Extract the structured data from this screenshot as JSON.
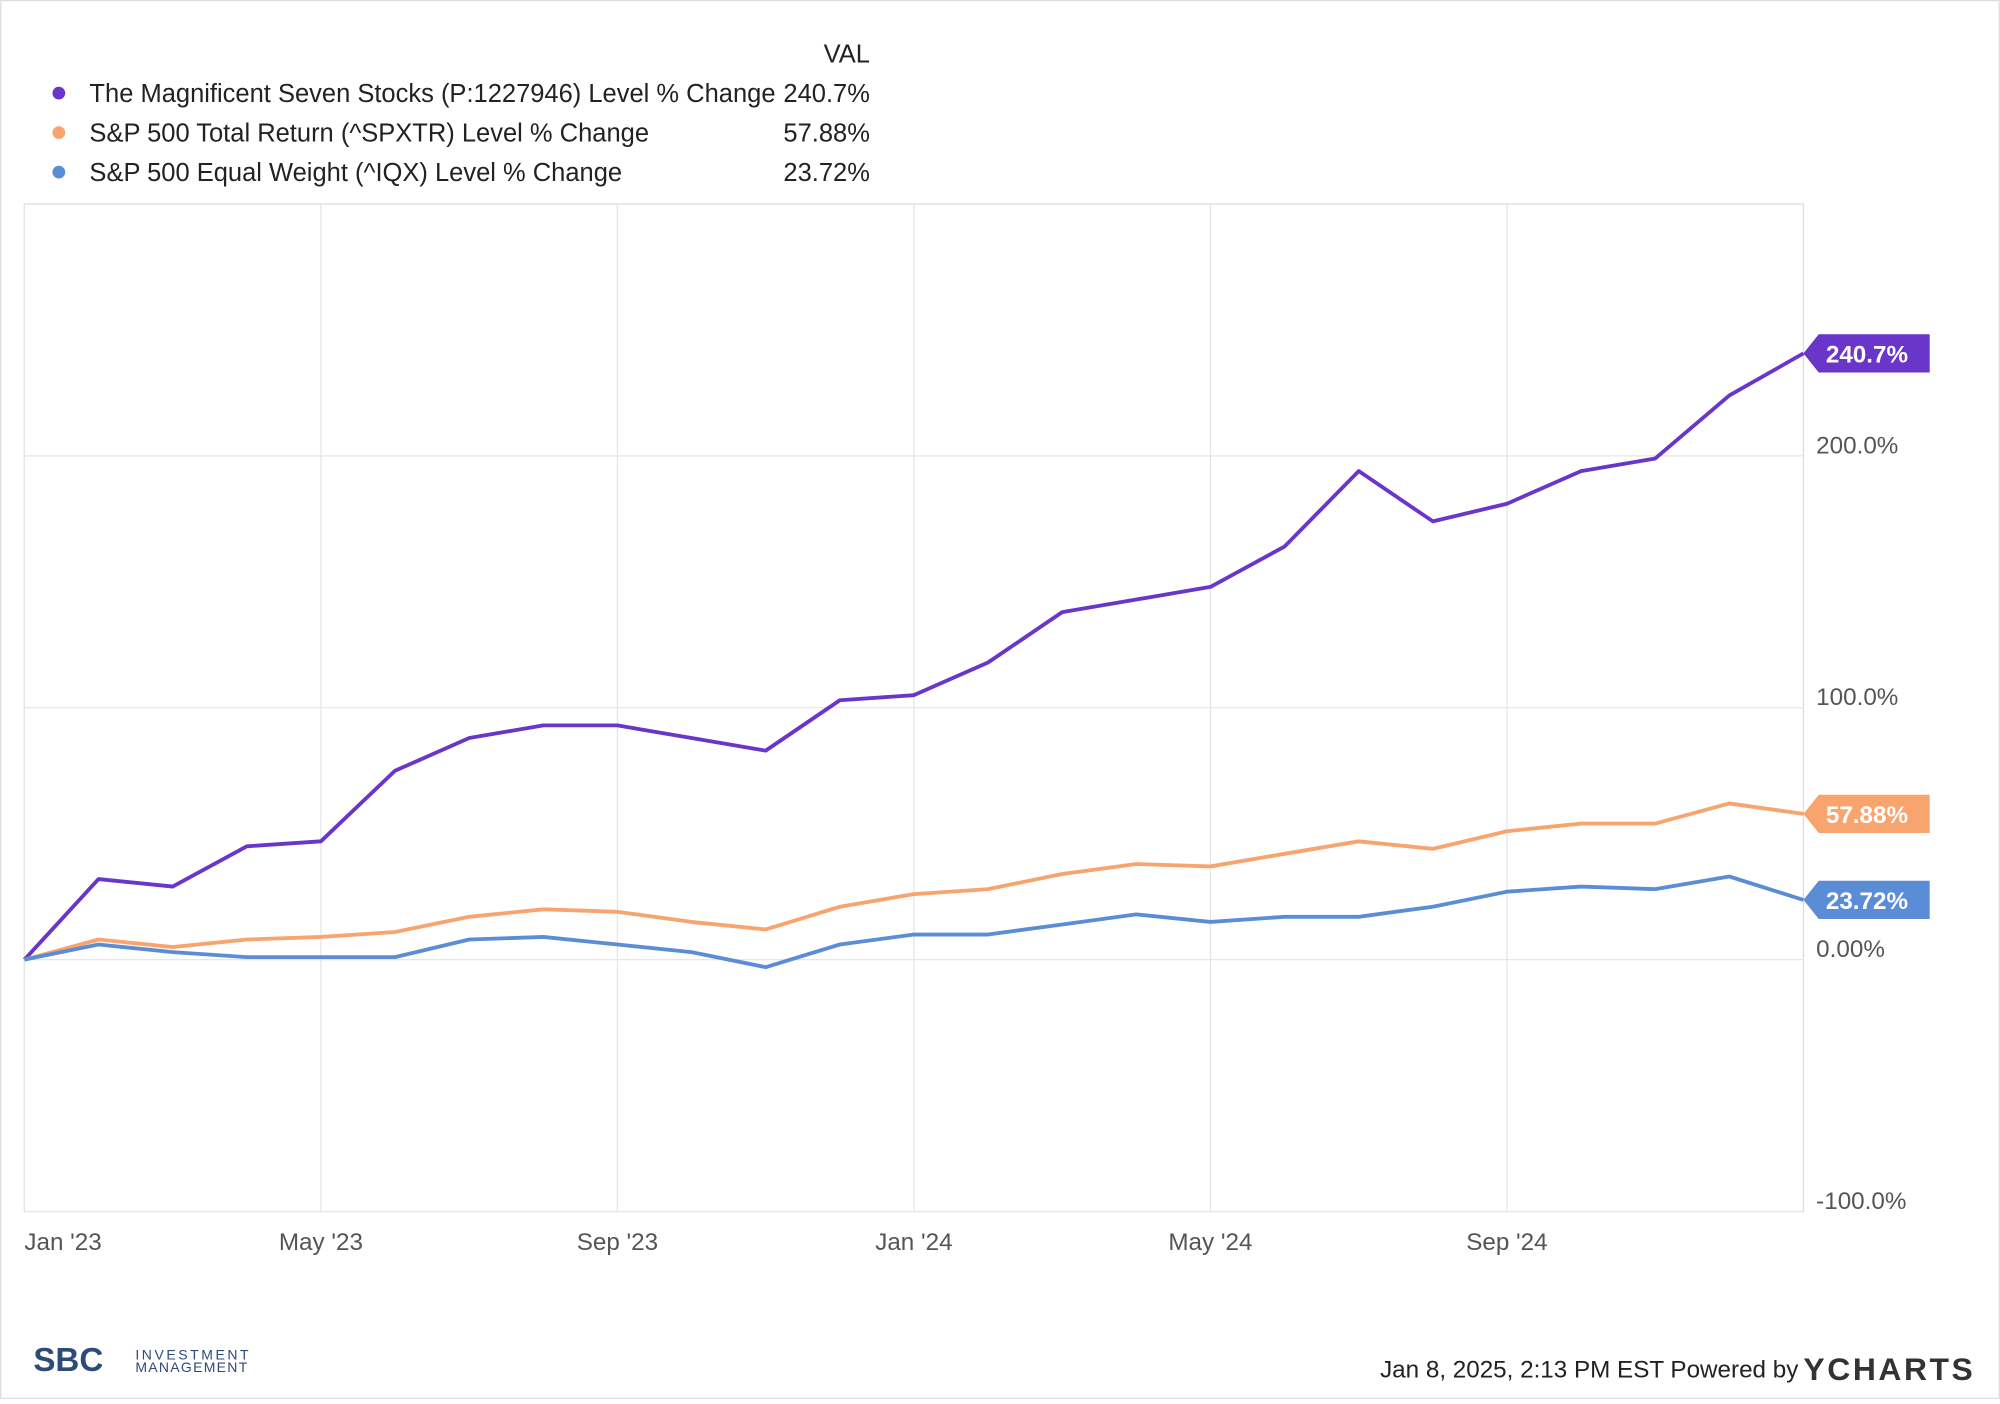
{
  "chart_data": {
    "type": "line",
    "legend_header": "VAL",
    "x": [
      "2023-01",
      "2023-02",
      "2023-03",
      "2023-04",
      "2023-05",
      "2023-06",
      "2023-07",
      "2023-08",
      "2023-09",
      "2023-10",
      "2023-11",
      "2023-12",
      "2024-01",
      "2024-02",
      "2024-03",
      "2024-04",
      "2024-05",
      "2024-06",
      "2024-07",
      "2024-08",
      "2024-09",
      "2024-10",
      "2024-11",
      "2024-12",
      "2025-01"
    ],
    "xlim": [
      "2023-01",
      "2025-01"
    ],
    "xticks": [
      {
        "value": "2023-01",
        "label": "Jan '23"
      },
      {
        "value": "2023-05",
        "label": "May '23"
      },
      {
        "value": "2023-09",
        "label": "Sep '23"
      },
      {
        "value": "2024-01",
        "label": "Jan '24"
      },
      {
        "value": "2024-05",
        "label": "May '24"
      },
      {
        "value": "2024-09",
        "label": "Sep '24"
      }
    ],
    "ylim": [
      -100,
      300
    ],
    "yticks": [
      {
        "value": -100,
        "label": "-100.0%"
      },
      {
        "value": 0,
        "label": "0.00%"
      },
      {
        "value": 100,
        "label": "100.0%"
      },
      {
        "value": 200,
        "label": "200.0%"
      }
    ],
    "grid": true,
    "series": [
      {
        "name": "The Magnificent Seven Stocks (P:1227946) Level % Change",
        "color": "#6a35c9",
        "last_label": "240.7%",
        "values": [
          0,
          32,
          29,
          45,
          47,
          75,
          88,
          93,
          93,
          88,
          83,
          103,
          105,
          118,
          138,
          143,
          148,
          164,
          194,
          174,
          181,
          194,
          199,
          224,
          240.7
        ]
      },
      {
        "name": "S&P 500 Total Return (^SPXTR) Level % Change",
        "color": "#f7a46f",
        "last_label": "57.88%",
        "values": [
          0,
          8,
          5,
          8,
          9,
          11,
          17,
          20,
          19,
          15,
          12,
          21,
          26,
          28,
          34,
          38,
          37,
          42,
          47,
          44,
          51,
          54,
          54,
          62,
          57.88
        ]
      },
      {
        "name": "S&P 500 Equal Weight (^IQX) Level % Change",
        "color": "#5b8dd6",
        "last_label": "23.72%",
        "values": [
          0,
          6,
          3,
          1,
          1,
          1,
          8,
          9,
          6,
          3,
          -3,
          6,
          10,
          10,
          14,
          18,
          15,
          17,
          17,
          21,
          27,
          29,
          28,
          33,
          23.72
        ]
      }
    ]
  },
  "footer": {
    "timestamp": "Jan 8, 2025, 2:13 PM EST Powered by",
    "brand": "YCHARTS",
    "logo_mark": "SBC",
    "logo_line1": "INVESTMENT",
    "logo_line2": "MANAGEMENT"
  }
}
